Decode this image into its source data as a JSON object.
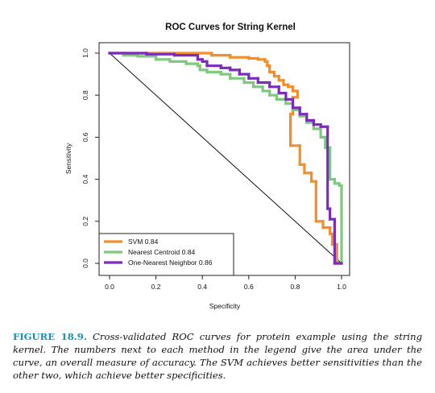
{
  "chart_data": {
    "type": "line",
    "title": "ROC Curves for String Kernel",
    "xlabel": "Specificity",
    "ylabel": "Sensitivity",
    "xlim": [
      0,
      1
    ],
    "ylim": [
      0,
      1
    ],
    "xticks": [
      "0.0",
      "0.2",
      "0.4",
      "0.6",
      "0.8",
      "1.0"
    ],
    "yticks": [
      "0.0",
      "0.2",
      "0.4",
      "0.6",
      "0.8",
      "1.0"
    ],
    "diagonal_reference": true,
    "legend_position": "bottom-left",
    "series": [
      {
        "name": "SVM",
        "auc": "0.84",
        "color": "#f28e2b",
        "points": [
          [
            0,
            1.0
          ],
          [
            0.3,
            1.0
          ],
          [
            0.44,
            1.0
          ],
          [
            0.44,
            0.99
          ],
          [
            0.52,
            0.99
          ],
          [
            0.52,
            0.98
          ],
          [
            0.6,
            0.98
          ],
          [
            0.6,
            0.975
          ],
          [
            0.64,
            0.975
          ],
          [
            0.64,
            0.97
          ],
          [
            0.67,
            0.97
          ],
          [
            0.67,
            0.96
          ],
          [
            0.68,
            0.96
          ],
          [
            0.68,
            0.94
          ],
          [
            0.69,
            0.94
          ],
          [
            0.69,
            0.91
          ],
          [
            0.71,
            0.91
          ],
          [
            0.71,
            0.89
          ],
          [
            0.73,
            0.89
          ],
          [
            0.73,
            0.87
          ],
          [
            0.75,
            0.87
          ],
          [
            0.75,
            0.85
          ],
          [
            0.77,
            0.85
          ],
          [
            0.77,
            0.84
          ],
          [
            0.79,
            0.84
          ],
          [
            0.79,
            0.82
          ],
          [
            0.81,
            0.82
          ],
          [
            0.81,
            0.79
          ],
          [
            0.79,
            0.79
          ],
          [
            0.79,
            0.71
          ],
          [
            0.78,
            0.71
          ],
          [
            0.78,
            0.56
          ],
          [
            0.82,
            0.56
          ],
          [
            0.82,
            0.47
          ],
          [
            0.84,
            0.47
          ],
          [
            0.84,
            0.43
          ],
          [
            0.87,
            0.43
          ],
          [
            0.87,
            0.39
          ],
          [
            0.89,
            0.39
          ],
          [
            0.89,
            0.2
          ],
          [
            0.92,
            0.2
          ],
          [
            0.92,
            0.17
          ],
          [
            0.95,
            0.17
          ],
          [
            0.95,
            0.14
          ],
          [
            0.96,
            0.14
          ],
          [
            0.96,
            0.09
          ],
          [
            0.98,
            0.09
          ],
          [
            0.98,
            0.0
          ],
          [
            1.0,
            0.0
          ]
        ]
      },
      {
        "name": "Nearest Centroid",
        "auc": "0.84",
        "color": "#7fc97f",
        "points": [
          [
            0,
            1.0
          ],
          [
            0.06,
            1.0
          ],
          [
            0.06,
            0.99
          ],
          [
            0.12,
            0.99
          ],
          [
            0.12,
            0.985
          ],
          [
            0.2,
            0.985
          ],
          [
            0.2,
            0.97
          ],
          [
            0.26,
            0.97
          ],
          [
            0.26,
            0.96
          ],
          [
            0.33,
            0.96
          ],
          [
            0.33,
            0.95
          ],
          [
            0.38,
            0.95
          ],
          [
            0.38,
            0.94
          ],
          [
            0.39,
            0.94
          ],
          [
            0.39,
            0.92
          ],
          [
            0.42,
            0.92
          ],
          [
            0.42,
            0.91
          ],
          [
            0.48,
            0.91
          ],
          [
            0.48,
            0.9
          ],
          [
            0.52,
            0.9
          ],
          [
            0.52,
            0.88
          ],
          [
            0.58,
            0.88
          ],
          [
            0.58,
            0.86
          ],
          [
            0.62,
            0.86
          ],
          [
            0.62,
            0.84
          ],
          [
            0.66,
            0.84
          ],
          [
            0.66,
            0.82
          ],
          [
            0.69,
            0.82
          ],
          [
            0.69,
            0.8
          ],
          [
            0.72,
            0.8
          ],
          [
            0.72,
            0.78
          ],
          [
            0.76,
            0.78
          ],
          [
            0.76,
            0.76
          ],
          [
            0.79,
            0.76
          ],
          [
            0.79,
            0.73
          ],
          [
            0.82,
            0.73
          ],
          [
            0.82,
            0.7
          ],
          [
            0.85,
            0.7
          ],
          [
            0.85,
            0.67
          ],
          [
            0.88,
            0.67
          ],
          [
            0.88,
            0.64
          ],
          [
            0.91,
            0.64
          ],
          [
            0.91,
            0.6
          ],
          [
            0.93,
            0.6
          ],
          [
            0.93,
            0.55
          ],
          [
            0.95,
            0.55
          ],
          [
            0.95,
            0.4
          ],
          [
            0.97,
            0.4
          ],
          [
            0.97,
            0.38
          ],
          [
            0.99,
            0.38
          ],
          [
            0.99,
            0.37
          ],
          [
            1.0,
            0.37
          ],
          [
            1.0,
            0.0
          ]
        ]
      },
      {
        "name": "One-Nearest Neighbor",
        "auc": "0.86",
        "color": "#7b2cbf",
        "points": [
          [
            0,
            1.0
          ],
          [
            0.16,
            1.0
          ],
          [
            0.16,
            0.995
          ],
          [
            0.28,
            0.995
          ],
          [
            0.28,
            0.99
          ],
          [
            0.38,
            0.99
          ],
          [
            0.38,
            0.97
          ],
          [
            0.4,
            0.97
          ],
          [
            0.4,
            0.96
          ],
          [
            0.42,
            0.96
          ],
          [
            0.42,
            0.94
          ],
          [
            0.48,
            0.94
          ],
          [
            0.48,
            0.93
          ],
          [
            0.52,
            0.93
          ],
          [
            0.52,
            0.92
          ],
          [
            0.56,
            0.92
          ],
          [
            0.56,
            0.9
          ],
          [
            0.6,
            0.9
          ],
          [
            0.6,
            0.88
          ],
          [
            0.64,
            0.88
          ],
          [
            0.64,
            0.86
          ],
          [
            0.69,
            0.86
          ],
          [
            0.69,
            0.84
          ],
          [
            0.73,
            0.84
          ],
          [
            0.73,
            0.81
          ],
          [
            0.76,
            0.81
          ],
          [
            0.76,
            0.78
          ],
          [
            0.79,
            0.78
          ],
          [
            0.79,
            0.74
          ],
          [
            0.82,
            0.74
          ],
          [
            0.82,
            0.71
          ],
          [
            0.85,
            0.71
          ],
          [
            0.85,
            0.68
          ],
          [
            0.88,
            0.68
          ],
          [
            0.88,
            0.66
          ],
          [
            0.91,
            0.66
          ],
          [
            0.91,
            0.65
          ],
          [
            0.94,
            0.65
          ],
          [
            0.94,
            0.26
          ],
          [
            0.95,
            0.26
          ],
          [
            0.95,
            0.21
          ],
          [
            0.97,
            0.21
          ],
          [
            0.97,
            0.0
          ],
          [
            1.0,
            0.0
          ]
        ]
      }
    ]
  },
  "caption": {
    "label": "FIGURE 18.9.",
    "text": "Cross-validated ROC curves for protein example using the string kernel. The numbers next to each method in the legend give the area under the curve, an overall measure of accuracy. The SVM achieves better sensitivities than the other two, which achieve better specificities."
  }
}
